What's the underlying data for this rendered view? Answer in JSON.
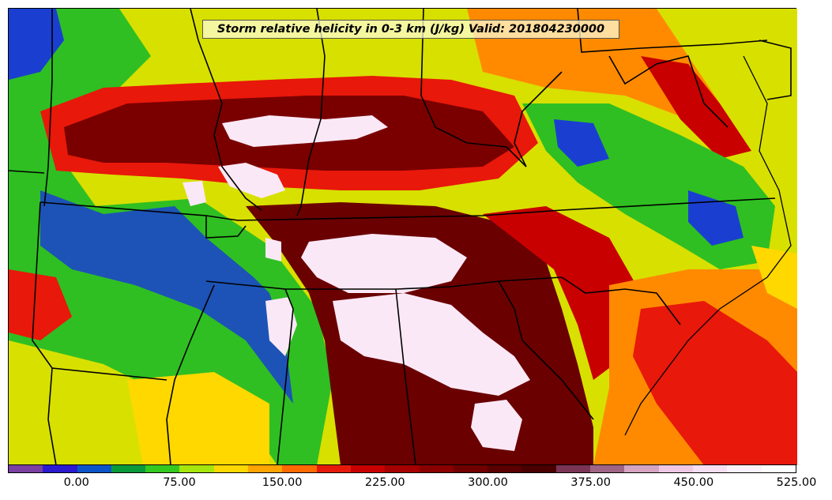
{
  "title": "Storm relative helicity in 0-3 km (J/kg) Valid: 201804230000",
  "colorbar": {
    "colors": [
      "#7a3fa0",
      "#2a1ad0",
      "#0b55c8",
      "#0a9a3a",
      "#35c81e",
      "#a6e60c",
      "#ffd800",
      "#ffa400",
      "#ff6a00",
      "#e61a0a",
      "#c80000",
      "#a60000",
      "#8a0000",
      "#700000",
      "#5a0000",
      "#4a0000",
      "#7a3555",
      "#a06585",
      "#d4a4c0",
      "#f0c8e4",
      "#f8def2",
      "#fdf0fa",
      "#ffffff"
    ],
    "tick_labels": [
      "0.00",
      "75.00",
      "150.00",
      "225.00",
      "300.00",
      "375.00",
      "450.00",
      "525.00"
    ],
    "tick_positions": [
      2,
      5,
      8,
      11,
      14,
      17,
      20,
      23
    ]
  },
  "map_fields": {
    "background": "#d8e000",
    "regions": [
      {
        "name": "west-green",
        "color": "#2fbf22"
      },
      {
        "name": "west-blue",
        "color": "#1a3fd0"
      },
      {
        "name": "north-red",
        "color": "#e8180a"
      },
      {
        "name": "north-darkred",
        "color": "#7a0000"
      },
      {
        "name": "center-darkred",
        "color": "#6a0000"
      },
      {
        "name": "east-green",
        "color": "#2fbf22"
      },
      {
        "name": "southeast-orange",
        "color": "#ff8a00"
      },
      {
        "name": "white-cores",
        "color": "#fbe8f6"
      }
    ]
  }
}
